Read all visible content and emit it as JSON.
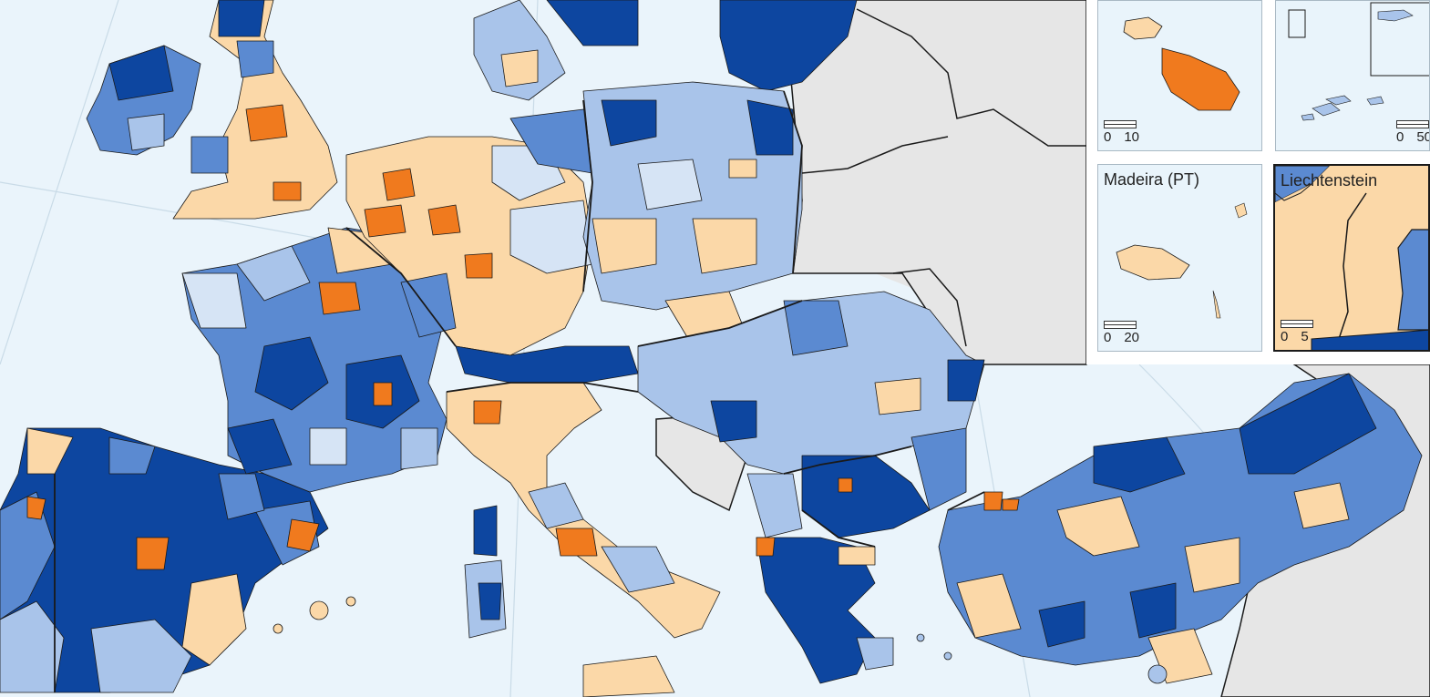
{
  "map": {
    "colors": {
      "sea": "#eaf4fb",
      "non_eu": "#e6e6e6",
      "dark_blue": "#0d46a0",
      "mid_blue": "#5b8ad1",
      "light_blue": "#a9c4ea",
      "pale_blue": "#d6e4f5",
      "pale_orange": "#fbd8a8",
      "orange": "#f07a1e",
      "border_line": "#1a1a1a"
    },
    "legend": []
  },
  "insets": [
    {
      "id": "malta",
      "title": "",
      "scale": [
        "0",
        "10"
      ]
    },
    {
      "id": "azores",
      "title": "",
      "scale": [
        "0",
        "50"
      ]
    },
    {
      "id": "madeira",
      "title": "Madeira (PT)",
      "scale": [
        "0",
        "20"
      ]
    },
    {
      "id": "liechtenstein",
      "title": "Liechtenstein",
      "scale": [
        "0",
        "5"
      ]
    }
  ]
}
